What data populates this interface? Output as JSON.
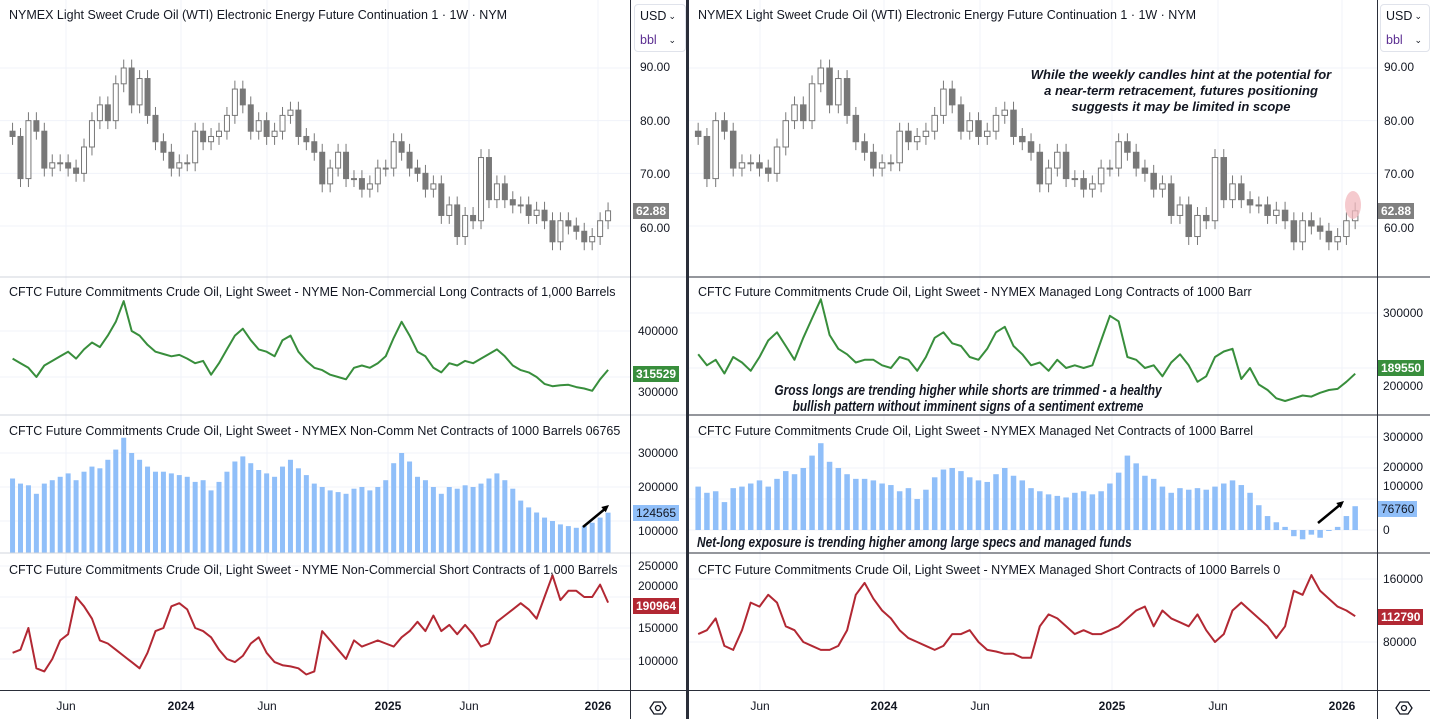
{
  "panels": [
    {
      "side": "left",
      "currency": "USD",
      "unit": "bbl",
      "titles": {
        "price": "NYMEX Light Sweet Crude Oil (WTI) Electronic Energy Future Continuation 1 · 1W · NYM",
        "long": "CFTC Future Commitments Crude Oil, Light Sweet - NYME Non-Commercial Long Contracts of 1,000 Barrels",
        "net": "CFTC Future Commitments Crude Oil, Light Sweet - NYMEX Non-Comm Net Contracts of 1000 Barrels 06765",
        "short": "CFTC Future Commitments Crude Oil, Light Sweet - NYME Non-Commercial Short Contracts of 1,000 Barrels"
      },
      "badges": {
        "price": "62.88",
        "long": "315529",
        "net": "124565",
        "short": "190964"
      },
      "ticks": {
        "price": [
          "90.00",
          "80.00",
          "70.00",
          "60.00"
        ],
        "long": [
          "400000",
          "300000"
        ],
        "net": [
          "300000",
          "200000",
          "100000"
        ],
        "short": [
          "250000",
          "200000",
          "150000",
          "100000"
        ]
      },
      "annotations": {}
    },
    {
      "side": "right",
      "currency": "USD",
      "unit": "bbl",
      "titles": {
        "price": "NYMEX Light Sweet Crude Oil (WTI) Electronic Energy Future Continuation 1 · 1W · NYM",
        "long": "CFTC Future Commitments Crude Oil, Light Sweet - NYMEX Managed Long Contracts of 1000 Barr",
        "net": "CFTC Future Commitments Crude Oil, Light Sweet - NYMEX Managed Net Contracts of 1000 Barrel",
        "short": "CFTC Future Commitments Crude Oil, Light Sweet - NYMEX Managed Short Contracts of 1000 Barrels 0"
      },
      "badges": {
        "price": "62.88",
        "long": "189550",
        "net": "76760",
        "short": "112790"
      },
      "ticks": {
        "price": [
          "90.00",
          "80.00",
          "70.00",
          "60.00"
        ],
        "long": [
          "300000",
          "200000"
        ],
        "net": [
          "300000",
          "200000",
          "100000",
          "0"
        ],
        "short": [
          "160000",
          "80000"
        ]
      },
      "annotations": {
        "price_line1": "While the weekly candles hint at the potential for",
        "price_line2": "a near-term retracement, futures positioning",
        "price_line3": "suggests it may be limited in scope",
        "long_line1": "Gross longs are trending higher while shorts are trimmed - a healthy",
        "long_line2": "bullish pattern without imminent signs of a sentiment extreme",
        "net_line1": "Net-long exposure is trending higher among large specs and managed funds"
      }
    }
  ],
  "colors": {
    "candle": "#787878",
    "long": "#388e3c",
    "net": "#90bff9",
    "short": "#b22833",
    "price_badge": "#808080",
    "highlight": "#f2b8bd",
    "grid": "#f0f3fa"
  },
  "icons": {
    "axis_settings": "settings-hexagon-icon",
    "select_chevron": "chevron-down-icon"
  },
  "chart_data": {
    "type": "multi-pane",
    "interval": "1W",
    "x_tick_labels": [
      "Jun",
      "2024",
      "Jun",
      "2025",
      "Jun",
      "2026"
    ],
    "dates": [
      "2023-03-10",
      "2023-03-24",
      "2023-04-07",
      "2023-04-21",
      "2023-05-05",
      "2023-05-19",
      "2023-06-02",
      "2023-06-16",
      "2023-06-30",
      "2023-07-14",
      "2023-07-28",
      "2023-08-11",
      "2023-08-25",
      "2023-09-08",
      "2023-09-22",
      "2023-10-06",
      "2023-10-20",
      "2023-11-03",
      "2023-11-17",
      "2023-12-01",
      "2023-12-15",
      "2023-12-29",
      "2024-01-12",
      "2024-01-26",
      "2024-02-09",
      "2024-02-23",
      "2024-03-08",
      "2024-03-22",
      "2024-04-05",
      "2024-04-19",
      "2024-05-03",
      "2024-05-17",
      "2024-05-31",
      "2024-06-14",
      "2024-06-28",
      "2024-07-12",
      "2024-07-26",
      "2024-08-09",
      "2024-08-23",
      "2024-09-06",
      "2024-09-20",
      "2024-10-04",
      "2024-10-18",
      "2024-11-01",
      "2024-11-15",
      "2024-11-29",
      "2024-12-13",
      "2024-12-27",
      "2025-01-10",
      "2025-01-24",
      "2025-02-07",
      "2025-02-21",
      "2025-03-07",
      "2025-03-21",
      "2025-04-04",
      "2025-04-18",
      "2025-05-02",
      "2025-05-16",
      "2025-05-30",
      "2025-06-13",
      "2025-06-27",
      "2025-07-11",
      "2025-07-25",
      "2025-08-08",
      "2025-08-22",
      "2025-09-05",
      "2025-09-19",
      "2025-10-03",
      "2025-10-17",
      "2025-10-31",
      "2025-11-14",
      "2025-11-28",
      "2025-12-12",
      "2025-12-26",
      "2026-01-09",
      "2026-01-23"
    ],
    "price": {
      "type": "candlestick",
      "unit": "USD/bbl",
      "ylim": [
        55,
        95
      ],
      "close": [
        77,
        69,
        80,
        78,
        71,
        72,
        72,
        71,
        70,
        75,
        80,
        83,
        80,
        87,
        90,
        83,
        88,
        81,
        76,
        74,
        71,
        72,
        72,
        78,
        76,
        77,
        78,
        81,
        86,
        83,
        78,
        80,
        77,
        78,
        81,
        82,
        77,
        76,
        74,
        68,
        71,
        74,
        69,
        69,
        67,
        68,
        71,
        71,
        76,
        74,
        71,
        70,
        67,
        68,
        62,
        64,
        58,
        62,
        61,
        73,
        65,
        68,
        65,
        64,
        64,
        62,
        63,
        61,
        57,
        61,
        60,
        59,
        57,
        58,
        61,
        62.88
      ]
    },
    "series": [
      {
        "panel": "left",
        "pane": "long",
        "type": "line",
        "unit": "contracts",
        "values": [
          340000,
          330000,
          320000,
          300000,
          325000,
          335000,
          345000,
          355000,
          340000,
          360000,
          375000,
          365000,
          390000,
          420000,
          465000,
          400000,
          390000,
          370000,
          355000,
          350000,
          345000,
          348000,
          340000,
          330000,
          335000,
          305000,
          330000,
          360000,
          390000,
          405000,
          380000,
          360000,
          355000,
          345000,
          380000,
          390000,
          355000,
          335000,
          320000,
          315000,
          305000,
          300000,
          295000,
          320000,
          325000,
          320000,
          330000,
          345000,
          385000,
          420000,
          390000,
          355000,
          345000,
          320000,
          310000,
          330000,
          325000,
          335000,
          330000,
          340000,
          350000,
          360000,
          345000,
          325000,
          315000,
          310000,
          300000,
          285000,
          280000,
          282000,
          283000,
          278000,
          275000,
          270000,
          295000,
          315529
        ]
      },
      {
        "panel": "left",
        "pane": "net",
        "type": "bar",
        "unit": "contracts",
        "values": [
          225000,
          210000,
          205000,
          180000,
          210000,
          220000,
          230000,
          240000,
          220000,
          245000,
          260000,
          255000,
          280000,
          310000,
          345000,
          300000,
          280000,
          260000,
          245000,
          245000,
          240000,
          235000,
          230000,
          215000,
          220000,
          190000,
          215000,
          245000,
          275000,
          290000,
          270000,
          250000,
          240000,
          230000,
          260000,
          280000,
          255000,
          235000,
          210000,
          200000,
          190000,
          185000,
          180000,
          195000,
          200000,
          190000,
          200000,
          220000,
          270000,
          300000,
          275000,
          230000,
          220000,
          200000,
          180000,
          200000,
          195000,
          205000,
          200000,
          210000,
          225000,
          240000,
          220000,
          195000,
          160000,
          140000,
          125000,
          110000,
          100000,
          90000,
          85000,
          80000,
          85000,
          95000,
          110000,
          124565
        ]
      },
      {
        "panel": "left",
        "pane": "short",
        "type": "line",
        "unit": "contracts",
        "values": [
          110000,
          115000,
          150000,
          85000,
          80000,
          100000,
          130000,
          140000,
          200000,
          185000,
          165000,
          130000,
          125000,
          115000,
          105000,
          95000,
          85000,
          110000,
          145000,
          150000,
          185000,
          190000,
          180000,
          150000,
          145000,
          135000,
          115000,
          100000,
          95000,
          105000,
          125000,
          135000,
          110000,
          95000,
          90000,
          88000,
          85000,
          75000,
          80000,
          145000,
          130000,
          115000,
          100000,
          130000,
          120000,
          125000,
          130000,
          125000,
          120000,
          135000,
          145000,
          160000,
          145000,
          170000,
          145000,
          155000,
          140000,
          155000,
          140000,
          120000,
          125000,
          160000,
          170000,
          180000,
          190000,
          180000,
          165000,
          200000,
          235000,
          195000,
          210000,
          210000,
          200000,
          200000,
          220000,
          190964
        ]
      },
      {
        "panel": "right",
        "pane": "long",
        "type": "line",
        "unit": "contracts",
        "values": [
          225000,
          205000,
          215000,
          190000,
          220000,
          210000,
          195000,
          220000,
          250000,
          265000,
          240000,
          215000,
          255000,
          290000,
          325000,
          260000,
          235000,
          225000,
          210000,
          215000,
          215000,
          205000,
          200000,
          220000,
          215000,
          195000,
          220000,
          255000,
          265000,
          245000,
          240000,
          220000,
          215000,
          235000,
          265000,
          275000,
          240000,
          225000,
          205000,
          210000,
          195000,
          215000,
          200000,
          205000,
          200000,
          205000,
          250000,
          295000,
          285000,
          220000,
          215000,
          200000,
          205000,
          185000,
          210000,
          225000,
          205000,
          175000,
          185000,
          220000,
          230000,
          235000,
          180000,
          200000,
          170000,
          160000,
          145000,
          140000,
          145000,
          150000,
          148000,
          155000,
          160000,
          162000,
          175000,
          189550
        ]
      },
      {
        "panel": "right",
        "pane": "net",
        "type": "bar",
        "unit": "contracts",
        "values": [
          140000,
          120000,
          125000,
          90000,
          135000,
          140000,
          150000,
          160000,
          140000,
          165000,
          190000,
          180000,
          200000,
          240000,
          280000,
          220000,
          200000,
          180000,
          165000,
          165000,
          160000,
          150000,
          145000,
          125000,
          135000,
          100000,
          130000,
          170000,
          195000,
          200000,
          190000,
          170000,
          160000,
          155000,
          180000,
          200000,
          175000,
          160000,
          135000,
          125000,
          115000,
          110000,
          105000,
          120000,
          125000,
          115000,
          125000,
          150000,
          185000,
          240000,
          215000,
          175000,
          165000,
          140000,
          120000,
          135000,
          130000,
          135000,
          130000,
          140000,
          150000,
          160000,
          145000,
          120000,
          80000,
          45000,
          25000,
          10000,
          -20000,
          -30000,
          -15000,
          -25000,
          0,
          10000,
          45000,
          76760
        ]
      },
      {
        "panel": "right",
        "pane": "short",
        "type": "line",
        "unit": "contracts",
        "values": [
          90000,
          95000,
          110000,
          75000,
          70000,
          95000,
          130000,
          125000,
          140000,
          130000,
          100000,
          95000,
          80000,
          75000,
          70000,
          70000,
          75000,
          95000,
          140000,
          155000,
          135000,
          120000,
          110000,
          95000,
          85000,
          80000,
          75000,
          70000,
          75000,
          90000,
          90000,
          95000,
          80000,
          70000,
          68000,
          65000,
          65000,
          60000,
          60000,
          100000,
          115000,
          110000,
          100000,
          90000,
          95000,
          90000,
          90000,
          95000,
          100000,
          110000,
          120000,
          125000,
          100000,
          120000,
          110000,
          105000,
          100000,
          115000,
          95000,
          80000,
          90000,
          120000,
          130000,
          120000,
          110000,
          100000,
          85000,
          100000,
          145000,
          140000,
          165000,
          145000,
          135000,
          125000,
          120000,
          112790
        ]
      }
    ]
  }
}
